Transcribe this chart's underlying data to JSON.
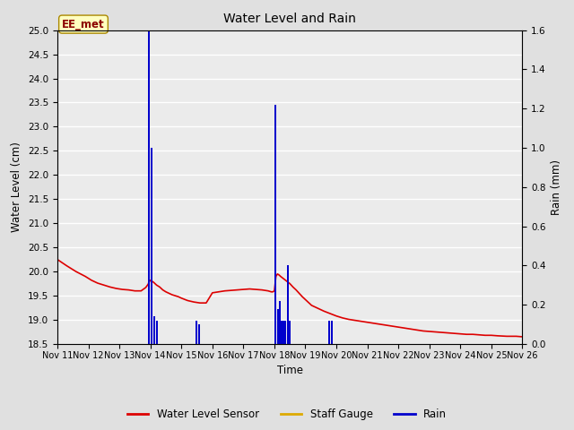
{
  "title": "Water Level and Rain",
  "xlabel": "Time",
  "ylabel_left": "Water Level (cm)",
  "ylabel_right": "Rain (mm)",
  "annotation": "EE_met",
  "xlim_days": [
    0,
    15
  ],
  "ylim_left": [
    18.5,
    25.0
  ],
  "ylim_right": [
    0.0,
    1.6
  ],
  "x_tick_labels": [
    "Nov 11",
    "Nov 12",
    "Nov 13",
    "Nov 14",
    "Nov 15",
    "Nov 16",
    "Nov 17",
    "Nov 18",
    "Nov 19",
    "Nov 20",
    "Nov 21",
    "Nov 22",
    "Nov 23",
    "Nov 24",
    "Nov 25",
    "Nov 26"
  ],
  "water_level_color": "#dd0000",
  "staff_gauge_color": "#ddaa00",
  "rain_color": "#0000cc",
  "background_color": "#e0e0e0",
  "plot_bg_color": "#ebebeb",
  "water_level_x": [
    0,
    0.3,
    0.6,
    0.9,
    1.1,
    1.3,
    1.5,
    1.7,
    1.9,
    2.1,
    2.3,
    2.5,
    2.7,
    2.85,
    2.93,
    2.95,
    3.0,
    3.05,
    3.1,
    3.2,
    3.3,
    3.4,
    3.5,
    3.6,
    3.7,
    3.8,
    3.9,
    4.0,
    4.2,
    4.4,
    4.6,
    4.8,
    5.0,
    5.2,
    5.4,
    5.6,
    5.8,
    6.0,
    6.2,
    6.4,
    6.6,
    6.8,
    6.9,
    6.95,
    7.0,
    7.05,
    7.1,
    7.15,
    7.2,
    7.3,
    7.4,
    7.5,
    7.6,
    7.7,
    7.8,
    7.9,
    8.0,
    8.1,
    8.2,
    8.4,
    8.6,
    8.8,
    9.0,
    9.2,
    9.4,
    9.6,
    9.8,
    10.0,
    10.2,
    10.4,
    10.6,
    10.8,
    11.0,
    11.2,
    11.4,
    11.6,
    11.8,
    12.0,
    12.2,
    12.4,
    12.6,
    12.8,
    13.0,
    13.2,
    13.4,
    13.6,
    13.8,
    14.0,
    14.2,
    14.5,
    14.8,
    15.0
  ],
  "water_level_y": [
    20.25,
    20.12,
    20.0,
    19.9,
    19.82,
    19.76,
    19.72,
    19.68,
    19.65,
    19.63,
    19.62,
    19.6,
    19.6,
    19.67,
    19.74,
    19.78,
    19.82,
    19.8,
    19.78,
    19.72,
    19.68,
    19.62,
    19.58,
    19.55,
    19.52,
    19.5,
    19.48,
    19.45,
    19.4,
    19.37,
    19.35,
    19.35,
    19.56,
    19.58,
    19.6,
    19.61,
    19.62,
    19.63,
    19.64,
    19.63,
    19.62,
    19.6,
    19.58,
    19.58,
    19.6,
    19.9,
    19.95,
    19.93,
    19.9,
    19.85,
    19.8,
    19.75,
    19.68,
    19.62,
    19.55,
    19.48,
    19.42,
    19.36,
    19.3,
    19.24,
    19.18,
    19.13,
    19.08,
    19.04,
    19.01,
    18.99,
    18.97,
    18.95,
    18.93,
    18.91,
    18.89,
    18.87,
    18.85,
    18.83,
    18.81,
    18.79,
    18.77,
    18.76,
    18.75,
    18.74,
    18.73,
    18.72,
    18.71,
    18.7,
    18.7,
    18.69,
    18.68,
    18.68,
    18.67,
    18.66,
    18.66,
    18.65
  ],
  "rain_bars": [
    {
      "x": 2.96,
      "height": 1.6
    },
    {
      "x": 3.04,
      "height": 1.0
    },
    {
      "x": 3.12,
      "height": 0.14
    },
    {
      "x": 3.2,
      "height": 0.12
    },
    {
      "x": 4.48,
      "height": 0.12
    },
    {
      "x": 4.56,
      "height": 0.1
    },
    {
      "x": 7.04,
      "height": 1.22
    },
    {
      "x": 7.12,
      "height": 0.18
    },
    {
      "x": 7.18,
      "height": 0.22
    },
    {
      "x": 7.24,
      "height": 0.12
    },
    {
      "x": 7.3,
      "height": 0.12
    },
    {
      "x": 7.36,
      "height": 0.12
    },
    {
      "x": 7.43,
      "height": 0.4
    },
    {
      "x": 7.5,
      "height": 0.12
    },
    {
      "x": 8.78,
      "height": 0.12
    },
    {
      "x": 8.86,
      "height": 0.12
    }
  ],
  "rain_bar_width": 0.055
}
